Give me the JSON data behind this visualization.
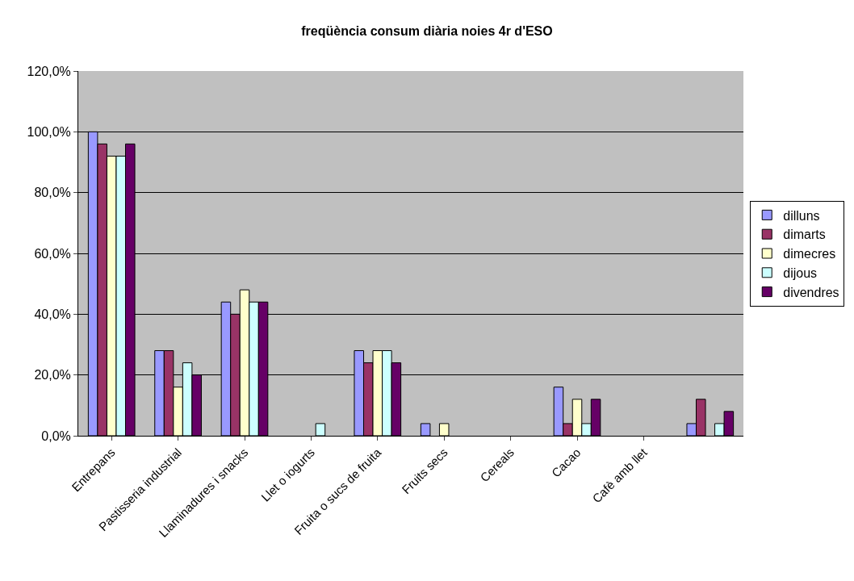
{
  "chart_data": {
    "type": "bar",
    "title": "freqüència consum diària noies 4r d'ESO",
    "categories": [
      "Entrepans",
      "Pastisseria industrial",
      "Llaminadures i snacks",
      "Llet o iogurts",
      "Fruita o sucs de fruita",
      "Fruits secs",
      "Cereals",
      "Cacao",
      "Cafè amb llet",
      null
    ],
    "series": [
      {
        "name": "dilluns",
        "color": "#9999ff",
        "values": [
          100,
          28,
          44,
          0,
          28,
          4,
          0,
          16,
          0,
          4
        ]
      },
      {
        "name": "dimarts",
        "color": "#993366",
        "values": [
          96,
          28,
          40,
          0,
          24,
          0,
          0,
          4,
          0,
          12
        ]
      },
      {
        "name": "dimecres",
        "color": "#ffffcc",
        "values": [
          92,
          16,
          48,
          0,
          28,
          4,
          0,
          12,
          0,
          0
        ]
      },
      {
        "name": "dijous",
        "color": "#ccffff",
        "values": [
          92,
          24,
          44,
          4,
          28,
          0,
          0,
          4,
          0,
          4
        ]
      },
      {
        "name": "divendres",
        "color": "#660066",
        "values": [
          96,
          20,
          44,
          0,
          24,
          0,
          0,
          12,
          0,
          8
        ]
      }
    ],
    "ylim": [
      0,
      120
    ],
    "yticks": [
      {
        "value": 0,
        "label": "0,0%"
      },
      {
        "value": 20,
        "label": "20,0%"
      },
      {
        "value": 40,
        "label": "40,0%"
      },
      {
        "value": 60,
        "label": "60,0%"
      },
      {
        "value": 80,
        "label": "80,0%"
      },
      {
        "value": 100,
        "label": "100,0%"
      },
      {
        "value": 120,
        "label": "120,0%"
      }
    ],
    "grid": "y",
    "legend": "right"
  }
}
